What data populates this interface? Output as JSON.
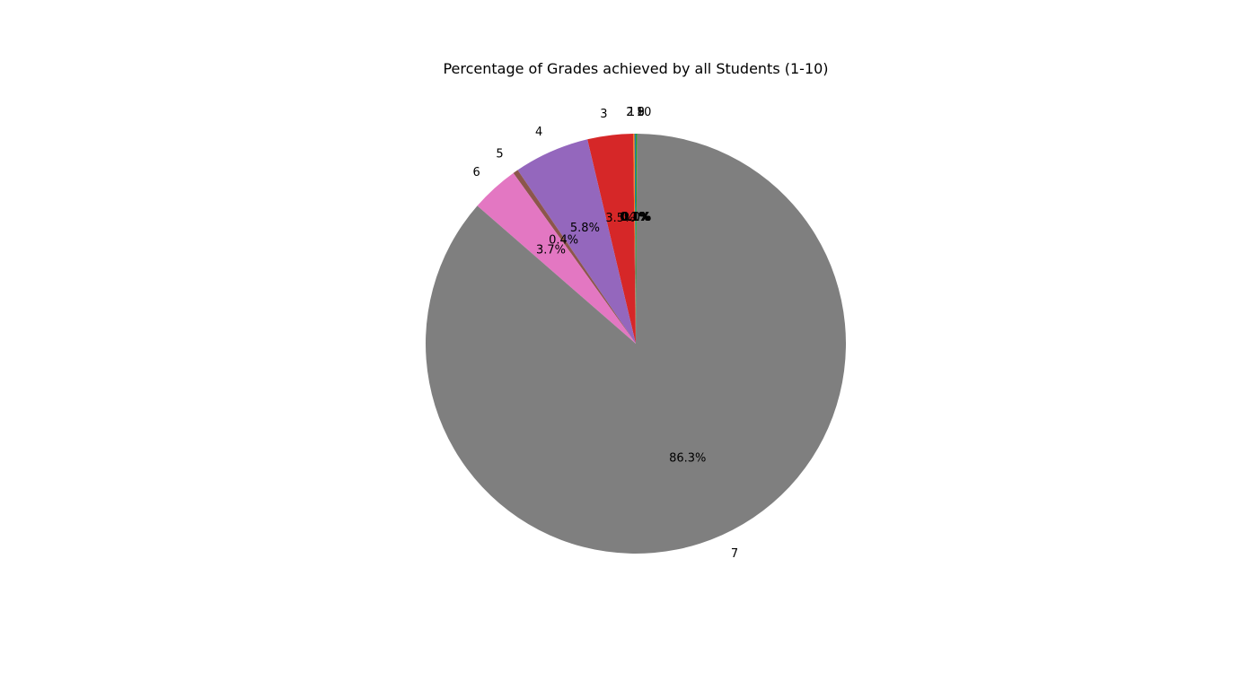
{
  "chart_data": {
    "type": "pie",
    "title": "Percentage of Grades achieved by all Students (1-10)",
    "start_angle_deg": 90,
    "direction": "counterclockwise",
    "slices": [
      {
        "label": "1",
        "value": 0.1,
        "pct_label": "0.1%",
        "color": "#1f77b4"
      },
      {
        "label": "2",
        "value": 0.1,
        "pct_label": "0.1%",
        "color": "#ff7f0e"
      },
      {
        "label": "3",
        "value": 3.5,
        "pct_label": "3.5%",
        "color": "#d62728"
      },
      {
        "label": "4",
        "value": 5.8,
        "pct_label": "5.8%",
        "color": "#9467bd"
      },
      {
        "label": "5",
        "value": 0.4,
        "pct_label": "0.4%",
        "color": "#8c564b"
      },
      {
        "label": "6",
        "value": 3.7,
        "pct_label": "3.7%",
        "color": "#e377c2"
      },
      {
        "label": "7",
        "value": 86.3,
        "pct_label": "86.3%",
        "color": "#7f7f7f"
      },
      {
        "label": "8",
        "value": 0.0,
        "pct_label": "0.0%",
        "color": "#bcbd22"
      },
      {
        "label": "9",
        "value": 0.0,
        "pct_label": "0.0%",
        "color": "#17becf"
      },
      {
        "label": "10",
        "value": 0.1,
        "pct_label": "0.1%",
        "color": "#2ca02c"
      }
    ]
  }
}
